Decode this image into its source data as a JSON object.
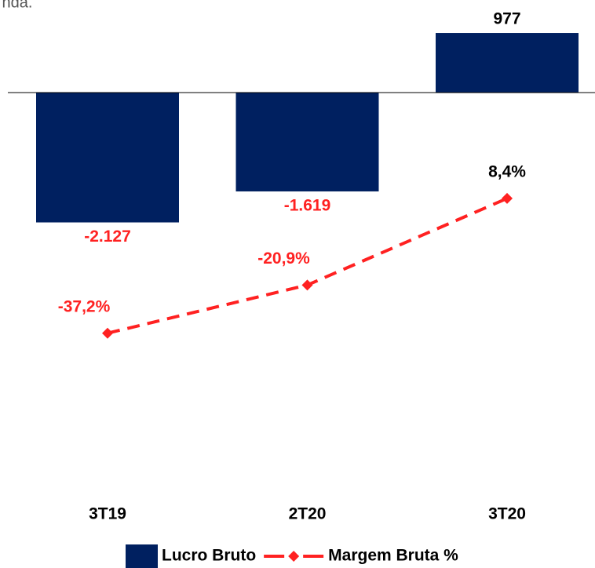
{
  "chart_data": {
    "type": "combo",
    "title": "nda.",
    "categories": [
      "3T19",
      "2T20",
      "3T20"
    ],
    "series": [
      {
        "name": "Lucro Bruto",
        "type": "bar",
        "color": "#002060",
        "values": [
          -2127,
          -1619,
          977
        ],
        "value_labels": [
          "-2.127",
          "-1.619",
          "977"
        ]
      },
      {
        "name": "Margem Bruta %",
        "type": "line",
        "axis": "y2",
        "color": "#ff2121",
        "values": [
          -37.2,
          -20.9,
          8.4
        ],
        "value_labels": [
          "-37,2%",
          "-20,9%",
          "8,4%"
        ]
      }
    ],
    "ylim": [
      -6500,
      1250
    ],
    "y2lim": [
      -90,
      70
    ],
    "legend": "bottom"
  }
}
